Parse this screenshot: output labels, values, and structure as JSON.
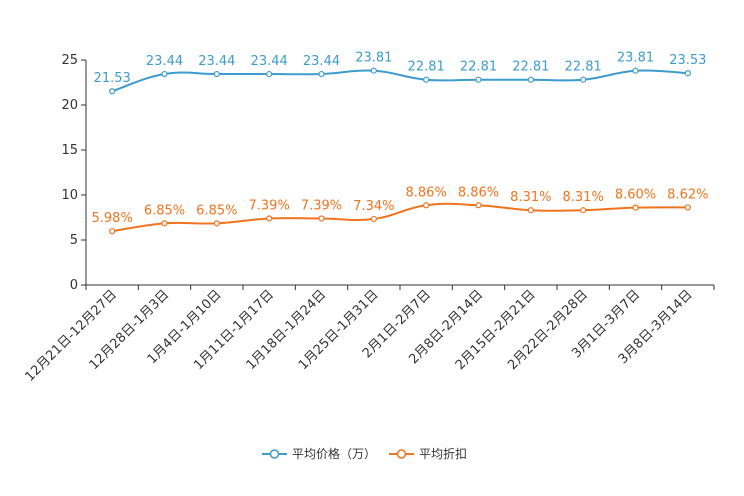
{
  "chart_data": {
    "type": "line",
    "categories": [
      "12月21日-12月27日",
      "12月28日-1月3日",
      "1月4日-1月10日",
      "1月11日-1月17日",
      "1月18日-1月24日",
      "1月25日-1月31日",
      "2月1日-2月7日",
      "2月8日-2月14日",
      "2月15日-2月21日",
      "2月22日-2月28日",
      "3月1日-3月7日",
      "3月8日-3月14日"
    ],
    "ylim": [
      0,
      25
    ],
    "yticks": [
      0,
      5,
      10,
      15,
      20,
      25
    ],
    "series": [
      {
        "name": "平均价格（万）",
        "color": "#3d9ccc",
        "values": [
          21.53,
          23.44,
          23.44,
          23.44,
          23.44,
          23.81,
          22.81,
          22.81,
          22.81,
          22.81,
          23.81,
          23.53
        ],
        "labels": [
          "21.53",
          "23.44",
          "23.44",
          "23.44",
          "23.44",
          "23.81",
          "22.81",
          "22.81",
          "22.81",
          "22.81",
          "23.81",
          "23.53"
        ]
      },
      {
        "name": "平均折扣",
        "color": "#f0731e",
        "values": [
          5.98,
          6.85,
          6.85,
          7.39,
          7.39,
          7.34,
          8.86,
          8.86,
          8.31,
          8.31,
          8.6,
          8.62
        ],
        "labels": [
          "5.98%",
          "6.85%",
          "6.85%",
          "7.39%",
          "7.39%",
          "7.34%",
          "8.86%",
          "8.86%",
          "8.31%",
          "8.31%",
          "8.60%",
          "8.62%"
        ]
      }
    ],
    "legend_position": "bottom-center",
    "grid": false
  }
}
